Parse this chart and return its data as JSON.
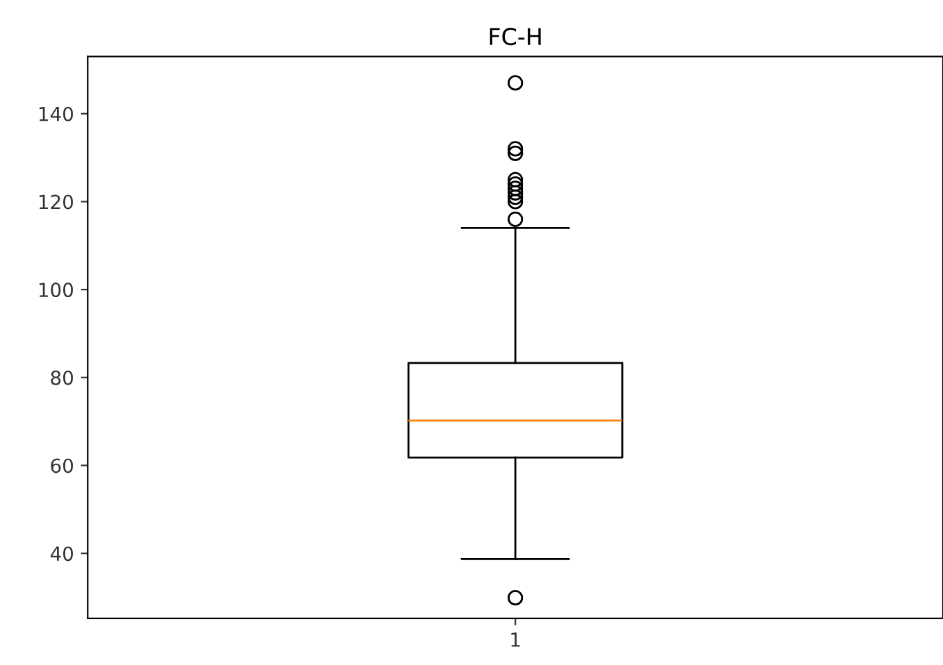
{
  "chart_data": {
    "type": "box",
    "title": "FC-H",
    "categories": [
      "1"
    ],
    "boxes": [
      {
        "low": 38.7,
        "q1": 61.8,
        "median": 70.2,
        "q3": 83.3,
        "high": 114,
        "outliers": [
          147,
          132,
          131,
          125,
          124,
          123,
          122,
          121,
          120,
          116,
          29.9
        ]
      }
    ],
    "color": "#000000",
    "ylim": [
      25.2,
      153
    ],
    "yticks": [
      40,
      60,
      80,
      100,
      120,
      140
    ],
    "grid": false
  }
}
